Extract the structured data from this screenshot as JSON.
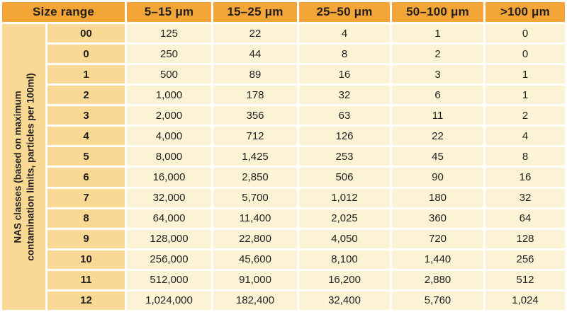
{
  "chart_data": {
    "type": "table",
    "header": {
      "size_range_label": "Size range",
      "size_columns": [
        "5–15 μm",
        "15–25 μm",
        "25–50 μm",
        "50–100 μm",
        ">100 μm"
      ]
    },
    "vertical_label": {
      "line1": "NAS classes (based on maximum",
      "line2": "contamination limits, particles per 100ml)",
      "full": "NAS classes (based on maximum contamination limits, particles per 100ml)"
    },
    "rows": [
      {
        "nas_class": "00",
        "values": [
          "125",
          "22",
          "4",
          "1",
          "0"
        ]
      },
      {
        "nas_class": "0",
        "values": [
          "250",
          "44",
          "8",
          "2",
          "0"
        ]
      },
      {
        "nas_class": "1",
        "values": [
          "500",
          "89",
          "16",
          "3",
          "1"
        ]
      },
      {
        "nas_class": "2",
        "values": [
          "1,000",
          "178",
          "32",
          "6",
          "1"
        ]
      },
      {
        "nas_class": "3",
        "values": [
          "2,000",
          "356",
          "63",
          "11",
          "2"
        ]
      },
      {
        "nas_class": "4",
        "values": [
          "4,000",
          "712",
          "126",
          "22",
          "4"
        ]
      },
      {
        "nas_class": "5",
        "values": [
          "8,000",
          "1,425",
          "253",
          "45",
          "8"
        ]
      },
      {
        "nas_class": "6",
        "values": [
          "16,000",
          "2,850",
          "506",
          "90",
          "16"
        ]
      },
      {
        "nas_class": "7",
        "values": [
          "32,000",
          "5,700",
          "1,012",
          "180",
          "32"
        ]
      },
      {
        "nas_class": "8",
        "values": [
          "64,000",
          "11,400",
          "2,025",
          "360",
          "64"
        ]
      },
      {
        "nas_class": "9",
        "values": [
          "128,000",
          "22,800",
          "4,050",
          "720",
          "128"
        ]
      },
      {
        "nas_class": "10",
        "values": [
          "256,000",
          "45,600",
          "8,100",
          "1,440",
          "256"
        ]
      },
      {
        "nas_class": "11",
        "values": [
          "512,000",
          "91,000",
          "16,200",
          "2,880",
          "512"
        ]
      },
      {
        "nas_class": "12",
        "values": [
          "1,024,000",
          "182,400",
          "32,400",
          "5,760",
          "1,024"
        ]
      }
    ],
    "colors": {
      "header_bg": "#F3A637",
      "class_col_bg": "#F9D994",
      "data_cell_bg": "#FCF3D5",
      "grid": "#FFFFFF",
      "text": "#231F20"
    }
  }
}
